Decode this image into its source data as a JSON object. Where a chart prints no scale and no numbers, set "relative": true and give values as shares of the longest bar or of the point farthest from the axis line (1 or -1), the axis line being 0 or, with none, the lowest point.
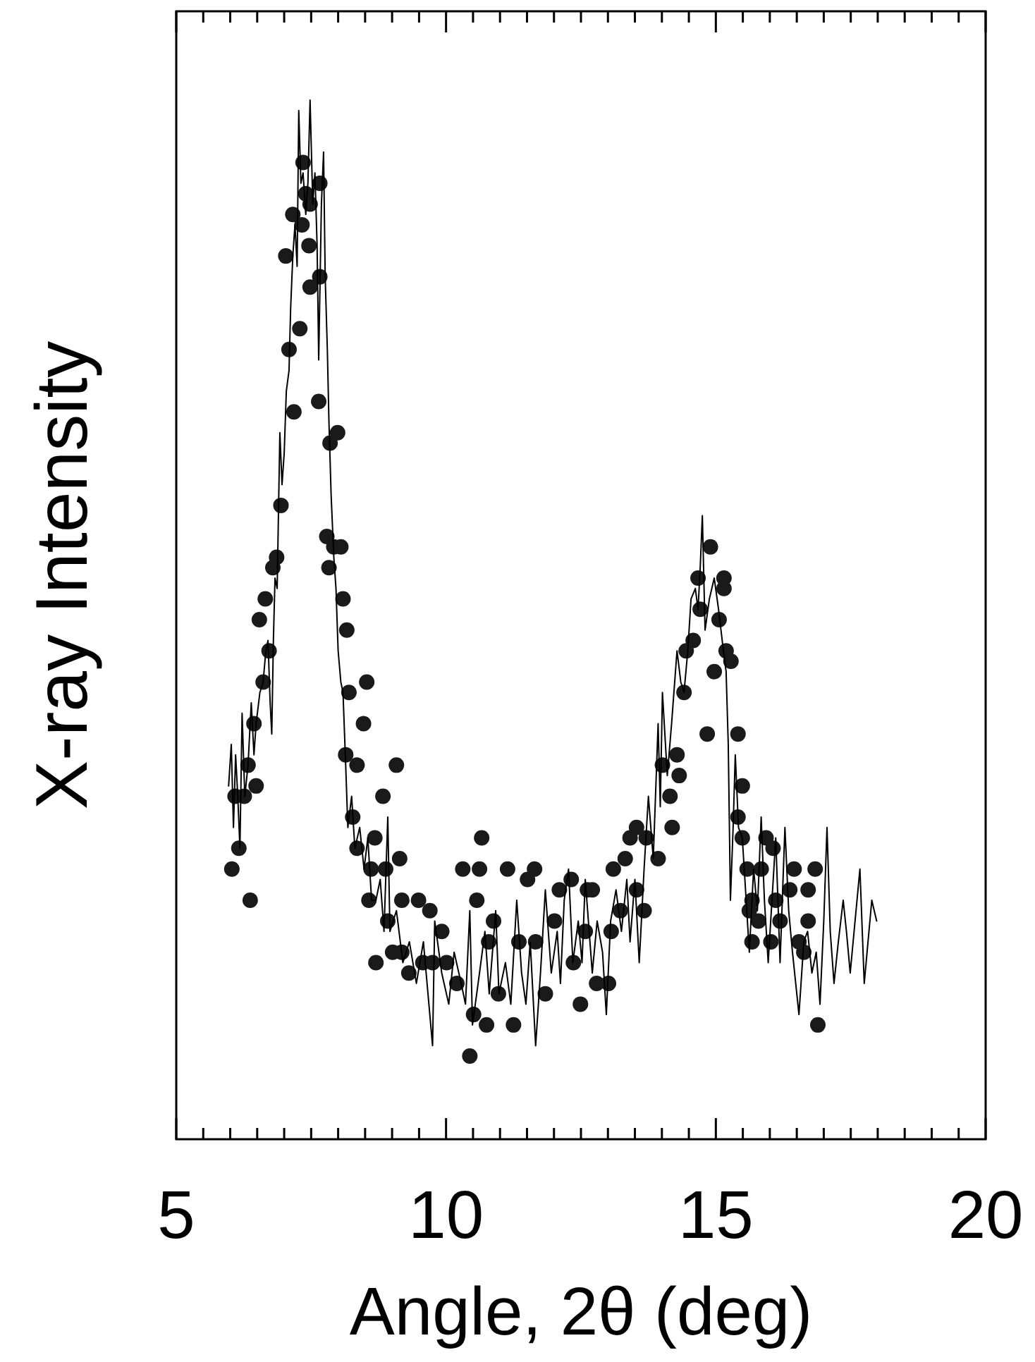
{
  "chart_data": {
    "type": "scatter",
    "xlabel": "Angle, 2θ (deg)",
    "ylabel": "X-ray Intensity",
    "relative": true,
    "xlim": [
      5,
      20
    ],
    "xticks": [
      5,
      {
        "value": 5.5,
        "label": null
      },
      {
        "value": 6,
        "label": null
      },
      {
        "value": 6.5,
        "label": null
      },
      {
        "value": 7,
        "label": null
      },
      {
        "value": 7.5,
        "label": null
      },
      {
        "value": 8,
        "label": null
      },
      {
        "value": 8.5,
        "label": null
      },
      {
        "value": 9,
        "label": null
      },
      {
        "value": 9.5,
        "label": null
      },
      10,
      {
        "value": 10.5,
        "label": null
      },
      {
        "value": 11,
        "label": null
      },
      {
        "value": 11.5,
        "label": null
      },
      {
        "value": 12,
        "label": null
      },
      {
        "value": 12.5,
        "label": null
      },
      {
        "value": 13,
        "label": null
      },
      {
        "value": 13.5,
        "label": null
      },
      {
        "value": 14,
        "label": null
      },
      {
        "value": 14.5,
        "label": null
      },
      15,
      {
        "value": 15.5,
        "label": null
      },
      {
        "value": 16,
        "label": null
      },
      {
        "value": 16.5,
        "label": null
      },
      {
        "value": 17,
        "label": null
      },
      {
        "value": 17.5,
        "label": null
      },
      {
        "value": 18,
        "label": null
      },
      {
        "value": 18.5,
        "label": null
      },
      {
        "value": 19,
        "label": null
      },
      {
        "value": 19.5,
        "label": null
      },
      20
    ],
    "series": [
      {
        "type": "scatter",
        "color": "#1a1a1a",
        "marker": "circle",
        "x": [
          6.03,
          6.09,
          6.16,
          6.26,
          6.33,
          6.37,
          6.44,
          6.48,
          6.54,
          6.61,
          6.65,
          6.72,
          6.79,
          6.86,
          6.94,
          7.03,
          7.09,
          7.16,
          7.18,
          7.29,
          7.33,
          7.35,
          7.4,
          7.46,
          7.48,
          7.48,
          7.64,
          7.66,
          7.66,
          7.79,
          7.83,
          7.85,
          7.92,
          7.99,
          8.05,
          8.09,
          8.14,
          8.16,
          8.2,
          8.27,
          8.35,
          8.35,
          8.47,
          8.53,
          8.57,
          8.61,
          8.68,
          8.7,
          8.83,
          8.88,
          8.92,
          9.01,
          9.08,
          9.14,
          9.18,
          9.18,
          9.31,
          9.49,
          9.57,
          9.7,
          9.75,
          9.92,
          10.01,
          10.2,
          10.31,
          10.44,
          10.51,
          10.57,
          10.62,
          10.66,
          10.75,
          10.79,
          10.88,
          10.97,
          11.14,
          11.25,
          11.35,
          11.51,
          11.64,
          11.66,
          11.84,
          12.01,
          12.1,
          12.32,
          12.36,
          12.49,
          12.58,
          12.62,
          12.71,
          12.79,
          13.01,
          13.06,
          13.1,
          13.23,
          13.32,
          13.41,
          13.53,
          13.53,
          13.67,
          13.71,
          13.93,
          14.01,
          14.15,
          14.19,
          14.28,
          14.32,
          14.41,
          14.45,
          14.58,
          14.67,
          14.71,
          14.84,
          14.9,
          14.97,
          15.06,
          15.15,
          15.15,
          15.19,
          15.28,
          15.41,
          15.41,
          15.49,
          15.49,
          15.58,
          15.62,
          15.67,
          15.67,
          15.79,
          15.84,
          15.93,
          16.02,
          16.06,
          16.11,
          16.19,
          16.37,
          16.45,
          16.54,
          16.63,
          16.71,
          16.71,
          16.84,
          16.89
        ],
        "values": [
          0.26,
          0.33,
          0.28,
          0.33,
          0.36,
          0.23,
          0.4,
          0.34,
          0.5,
          0.44,
          0.52,
          0.47,
          0.55,
          0.56,
          0.61,
          0.85,
          0.76,
          0.89,
          0.7,
          0.78,
          0.88,
          0.94,
          0.91,
          0.86,
          0.9,
          0.82,
          0.71,
          0.83,
          0.92,
          0.58,
          0.55,
          0.67,
          0.57,
          0.68,
          0.57,
          0.52,
          0.37,
          0.49,
          0.43,
          0.31,
          0.36,
          0.28,
          0.4,
          0.44,
          0.23,
          0.26,
          0.29,
          0.17,
          0.33,
          0.26,
          0.21,
          0.18,
          0.36,
          0.27,
          0.23,
          0.18,
          0.16,
          0.23,
          0.17,
          0.22,
          0.17,
          0.2,
          0.17,
          0.15,
          0.26,
          0.08,
          0.12,
          0.23,
          0.26,
          0.29,
          0.11,
          0.19,
          0.21,
          0.14,
          0.26,
          0.11,
          0.19,
          0.25,
          0.26,
          0.19,
          0.14,
          0.21,
          0.24,
          0.25,
          0.17,
          0.13,
          0.2,
          0.24,
          0.24,
          0.15,
          0.15,
          0.2,
          0.26,
          0.22,
          0.27,
          0.29,
          0.3,
          0.24,
          0.22,
          0.29,
          0.27,
          0.36,
          0.33,
          0.3,
          0.37,
          0.35,
          0.43,
          0.47,
          0.48,
          0.54,
          0.51,
          0.39,
          0.57,
          0.45,
          0.5,
          0.54,
          0.53,
          0.47,
          0.46,
          0.39,
          0.31,
          0.34,
          0.29,
          0.26,
          0.22,
          0.23,
          0.19,
          0.21,
          0.26,
          0.29,
          0.19,
          0.28,
          0.23,
          0.21,
          0.24,
          0.26,
          0.19,
          0.18,
          0.24,
          0.21,
          0.26,
          0.11
        ]
      },
      {
        "type": "line",
        "color": "#000000",
        "marker": "none",
        "x": [
          5.97,
          6.02,
          6.06,
          6.1,
          6.14,
          6.18,
          6.22,
          6.27,
          6.33,
          6.39,
          6.44,
          6.48,
          6.55,
          6.61,
          6.66,
          6.7,
          6.74,
          6.77,
          6.8,
          6.83,
          6.87,
          6.92,
          6.96,
          7.0,
          7.04,
          7.09,
          7.12,
          7.16,
          7.2,
          7.24,
          7.27,
          7.31,
          7.35,
          7.4,
          7.44,
          7.48,
          7.53,
          7.57,
          7.61,
          7.64,
          7.69,
          7.73,
          7.76,
          7.8,
          7.83,
          7.87,
          7.92,
          7.96,
          8.0,
          8.05,
          8.09,
          8.14,
          8.18,
          8.25,
          8.31,
          8.4,
          8.48,
          8.55,
          8.62,
          8.7,
          8.78,
          8.85,
          8.92,
          8.96,
          9.08,
          9.2,
          9.32,
          9.45,
          9.58,
          9.75,
          9.79,
          9.92,
          10.05,
          10.15,
          10.28,
          10.36,
          10.44,
          10.49,
          10.62,
          10.72,
          10.8,
          10.92,
          10.98,
          11.1,
          11.2,
          11.31,
          11.4,
          11.48,
          11.56,
          11.66,
          11.75,
          11.84,
          11.95,
          12.06,
          12.12,
          12.19,
          12.27,
          12.35,
          12.45,
          12.52,
          12.58,
          12.71,
          12.8,
          12.9,
          12.97,
          13.05,
          13.15,
          13.25,
          13.35,
          13.41,
          13.5,
          13.58,
          13.67,
          13.75,
          13.84,
          13.93,
          13.97,
          14.01,
          14.1,
          14.18,
          14.28,
          14.35,
          14.41,
          14.48,
          14.54,
          14.62,
          14.67,
          14.71,
          14.75,
          14.8,
          14.88,
          14.97,
          15.05,
          15.14,
          15.19,
          15.23,
          15.27,
          15.32,
          15.36,
          15.42,
          15.49,
          15.55,
          15.62,
          15.7,
          15.77,
          15.84,
          15.9,
          15.97,
          16.04,
          16.11,
          16.19,
          16.28,
          16.35,
          16.42,
          16.54,
          16.63,
          16.7,
          16.78,
          16.86,
          16.93,
          17.0,
          17.06,
          17.12,
          17.19,
          17.27,
          17.36,
          17.42,
          17.49,
          17.58,
          17.67,
          17.75,
          17.82,
          17.89,
          17.98
        ],
        "values": [
          0.34,
          0.38,
          0.3,
          0.37,
          0.33,
          0.28,
          0.41,
          0.33,
          0.36,
          0.42,
          0.37,
          0.4,
          0.43,
          0.44,
          0.47,
          0.48,
          0.42,
          0.39,
          0.48,
          0.54,
          0.53,
          0.68,
          0.63,
          0.66,
          0.72,
          0.74,
          0.8,
          0.85,
          0.88,
          0.84,
          0.99,
          0.92,
          0.93,
          0.89,
          0.92,
          1,
          0.9,
          0.93,
          0.86,
          0.75,
          0.9,
          0.95,
          0.83,
          0.76,
          0.69,
          0.62,
          0.56,
          0.53,
          0.47,
          0.44,
          0.43,
          0.36,
          0.3,
          0.33,
          0.28,
          0.3,
          0.26,
          0.29,
          0.23,
          0.23,
          0.25,
          0.2,
          0.31,
          0.2,
          0.22,
          0.17,
          0.19,
          0.15,
          0.19,
          0.09,
          0.21,
          0.16,
          0.13,
          0.18,
          0.15,
          0.13,
          0.22,
          0.11,
          0.16,
          0.2,
          0.14,
          0.22,
          0.14,
          0.17,
          0.13,
          0.23,
          0.16,
          0.13,
          0.19,
          0.09,
          0.16,
          0.24,
          0.16,
          0.2,
          0.15,
          0.23,
          0.26,
          0.17,
          0.21,
          0.17,
          0.25,
          0.16,
          0.21,
          0.18,
          0.12,
          0.21,
          0.24,
          0.2,
          0.25,
          0.19,
          0.25,
          0.17,
          0.26,
          0.33,
          0.27,
          0.4,
          0.32,
          0.43,
          0.35,
          0.4,
          0.47,
          0.44,
          0.43,
          0.47,
          0.52,
          0.53,
          0.51,
          0.55,
          0.6,
          0.49,
          0.52,
          0.54,
          0.51,
          0.47,
          0.45,
          0.38,
          0.23,
          0.3,
          0.37,
          0.3,
          0.29,
          0.24,
          0.18,
          0.26,
          0.22,
          0.31,
          0.23,
          0.17,
          0.23,
          0.29,
          0.17,
          0.3,
          0.22,
          0.18,
          0.12,
          0.19,
          0.2,
          0.16,
          0.18,
          0.13,
          0.21,
          0.3,
          0.2,
          0.15,
          0.19,
          0.23,
          0.2,
          0.16,
          0.21,
          0.26,
          0.15,
          0.19,
          0.23,
          0.21
        ]
      }
    ]
  }
}
